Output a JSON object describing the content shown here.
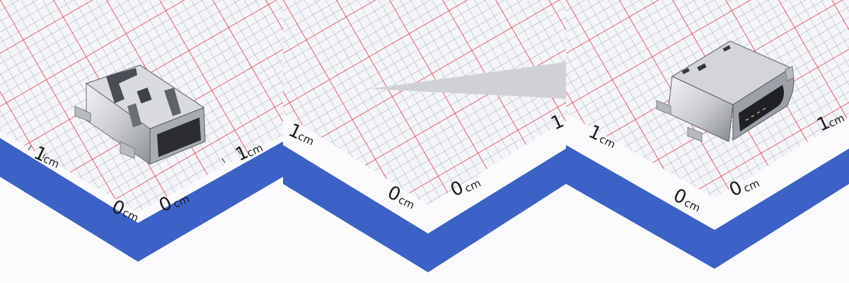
{
  "image": {
    "panels": [
      {
        "id": "mini-usb",
        "labels": {
          "zero_left": "0",
          "zero_right": "0",
          "one_left": "1",
          "one_right": "1",
          "unit": "cm"
        }
      },
      {
        "id": "micro-usb",
        "labels": {
          "zero_left": "0",
          "zero_right": "0",
          "one_left": "1",
          "one_right": "1",
          "unit": "cm"
        }
      },
      {
        "id": "usb-c",
        "labels": {
          "zero_left": "0",
          "zero_right": "0",
          "one_left": "1",
          "one_right": "1",
          "unit": "cm"
        }
      }
    ],
    "colors": {
      "grid_bg": "#f4f5f9",
      "grid_minor": "#8c8f99",
      "grid_major": "#e8434f",
      "blue_band": "#3c62c8",
      "paper_white": "#fbfbfd",
      "metal_light": "#e6e7ea",
      "metal_mid": "#b7b9be",
      "metal_dark": "#55585e"
    }
  }
}
